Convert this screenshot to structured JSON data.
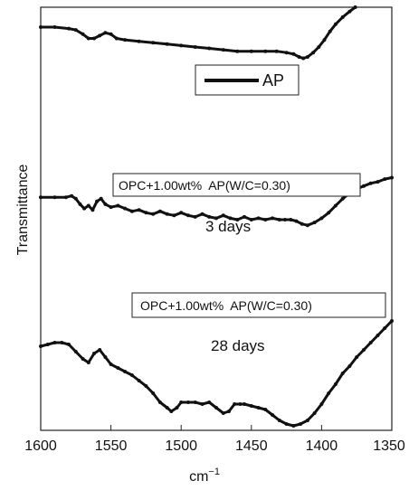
{
  "chart_data": {
    "type": "line",
    "xlabel": "cm",
    "xlabel_sup": "−1",
    "ylabel": "Transmittance",
    "xlim": [
      1600,
      1350
    ],
    "x_reversed": true,
    "x_ticks": [
      1600,
      1550,
      1500,
      1450,
      1400,
      1350
    ],
    "y_ticks_shown": false,
    "grid": false,
    "legend": {
      "label": "AP",
      "placement": "top-right"
    },
    "annotations": [
      {
        "text": "OPC+1.00wt%  AP(W/C=0.30)",
        "boxed": true,
        "near": "middle curve"
      },
      {
        "text": "3 days",
        "boxed": false,
        "near": "middle curve"
      },
      {
        "text": "OPC+1.00wt%  AP(W/C=0.30)",
        "boxed": true,
        "near": "bottom curve"
      },
      {
        "text": "28 days",
        "boxed": false,
        "near": "bottom curve"
      }
    ],
    "series": [
      {
        "name": "AP",
        "x": [
          1600,
          1590,
          1580,
          1575,
          1570,
          1566,
          1562,
          1558,
          1554,
          1550,
          1546,
          1540,
          1530,
          1520,
          1510,
          1500,
          1490,
          1480,
          1470,
          1460,
          1450,
          1440,
          1432,
          1425,
          1420,
          1416,
          1413,
          1410,
          1406,
          1402,
          1398,
          1394,
          1390,
          1385,
          1380,
          1376
        ],
        "y": [
          0.86,
          0.86,
          0.85,
          0.84,
          0.81,
          0.78,
          0.78,
          0.8,
          0.82,
          0.81,
          0.78,
          0.77,
          0.76,
          0.75,
          0.74,
          0.73,
          0.72,
          0.71,
          0.7,
          0.69,
          0.69,
          0.69,
          0.69,
          0.68,
          0.67,
          0.65,
          0.64,
          0.65,
          0.68,
          0.72,
          0.77,
          0.83,
          0.88,
          0.93,
          0.97,
          1.0
        ]
      },
      {
        "name": "3 days",
        "x": [
          1600,
          1590,
          1582,
          1578,
          1575,
          1572,
          1569,
          1566,
          1563,
          1560,
          1557,
          1554,
          1550,
          1545,
          1540,
          1535,
          1530,
          1525,
          1520,
          1515,
          1510,
          1505,
          1500,
          1495,
          1490,
          1485,
          1480,
          1475,
          1470,
          1465,
          1460,
          1455,
          1450,
          1445,
          1440,
          1435,
          1430,
          1426,
          1422,
          1418,
          1414,
          1410,
          1405,
          1400,
          1395,
          1390,
          1385,
          1380,
          1375,
          1370,
          1365,
          1360,
          1355,
          1350
        ],
        "y": [
          0.56,
          0.56,
          0.56,
          0.57,
          0.55,
          0.51,
          0.48,
          0.5,
          0.47,
          0.53,
          0.55,
          0.51,
          0.49,
          0.5,
          0.48,
          0.46,
          0.47,
          0.45,
          0.44,
          0.46,
          0.44,
          0.43,
          0.45,
          0.43,
          0.42,
          0.44,
          0.42,
          0.41,
          0.43,
          0.41,
          0.4,
          0.42,
          0.4,
          0.41,
          0.4,
          0.41,
          0.4,
          0.4,
          0.4,
          0.39,
          0.37,
          0.36,
          0.38,
          0.41,
          0.45,
          0.5,
          0.55,
          0.59,
          0.62,
          0.64,
          0.66,
          0.67,
          0.69,
          0.7
        ]
      },
      {
        "name": "28 days",
        "x": [
          1600,
          1595,
          1590,
          1585,
          1580,
          1575,
          1570,
          1566,
          1562,
          1558,
          1554,
          1550,
          1545,
          1540,
          1535,
          1530,
          1525,
          1520,
          1515,
          1510,
          1507,
          1503,
          1500,
          1495,
          1490,
          1485,
          1480,
          1475,
          1470,
          1466,
          1462,
          1458,
          1455,
          1450,
          1445,
          1440,
          1435,
          1430,
          1425,
          1420,
          1415,
          1410,
          1405,
          1400,
          1395,
          1390,
          1385,
          1380,
          1375,
          1370,
          1365,
          1360,
          1355,
          1350
        ],
        "y": [
          0.36,
          0.37,
          0.38,
          0.38,
          0.37,
          0.33,
          0.29,
          0.27,
          0.32,
          0.34,
          0.3,
          0.26,
          0.24,
          0.22,
          0.2,
          0.17,
          0.14,
          0.1,
          0.05,
          0.02,
          0.0,
          0.02,
          0.05,
          0.05,
          0.05,
          0.04,
          0.05,
          0.02,
          -0.01,
          0.0,
          0.04,
          0.04,
          0.04,
          0.03,
          0.02,
          0.01,
          -0.02,
          -0.05,
          -0.07,
          -0.08,
          -0.07,
          -0.05,
          -0.01,
          0.04,
          0.1,
          0.15,
          0.21,
          0.25,
          0.3,
          0.34,
          0.38,
          0.42,
          0.46,
          0.5
        ]
      }
    ]
  }
}
